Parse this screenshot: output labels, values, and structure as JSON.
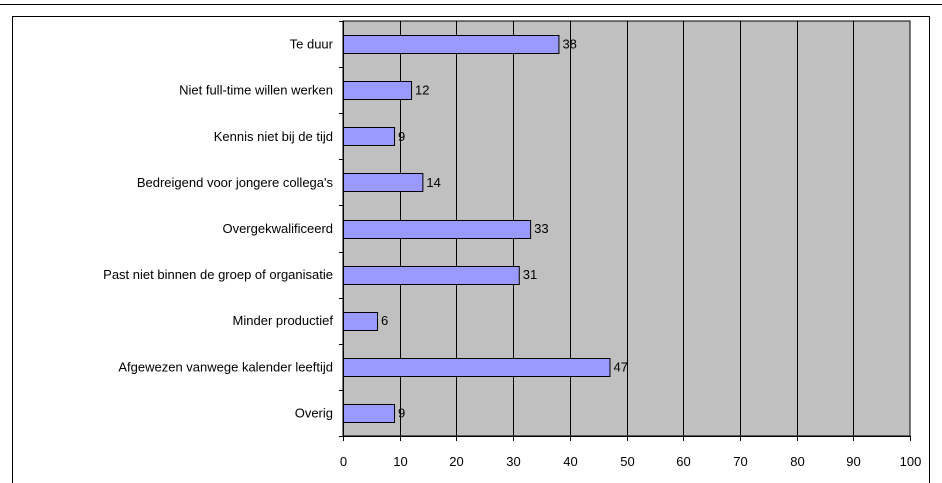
{
  "chart_data": {
    "type": "bar",
    "orientation": "horizontal",
    "categories": [
      "Te duur",
      "Niet full-time willen werken",
      "Kennis niet bij de tijd",
      "Bedreigend voor jongere collega's",
      "Overgekwalificeerd",
      "Past niet binnen de groep of organisatie",
      "Minder productief",
      "Afgewezen vanwege kalender leeftijd",
      "Overig"
    ],
    "values": [
      38,
      12,
      9,
      14,
      33,
      31,
      6,
      47,
      9
    ],
    "value_labels": [
      "38",
      "12",
      "9",
      "14",
      "33",
      "31",
      "6",
      "47",
      "9"
    ],
    "xlim": [
      0,
      100
    ],
    "xticks": [
      0,
      10,
      20,
      30,
      40,
      50,
      60,
      70,
      80,
      90,
      100
    ],
    "xtick_labels": [
      "0",
      "10",
      "20",
      "30",
      "40",
      "50",
      "60",
      "70",
      "80",
      "90",
      "100"
    ],
    "grid": "vertical",
    "legend": "none",
    "title": "",
    "xlabel": "",
    "ylabel": "",
    "colors": {
      "bar_fill": "#9999ff",
      "bar_stroke": "#000000",
      "plot_background": "#c0c0c0",
      "gridline": "#000000"
    }
  }
}
